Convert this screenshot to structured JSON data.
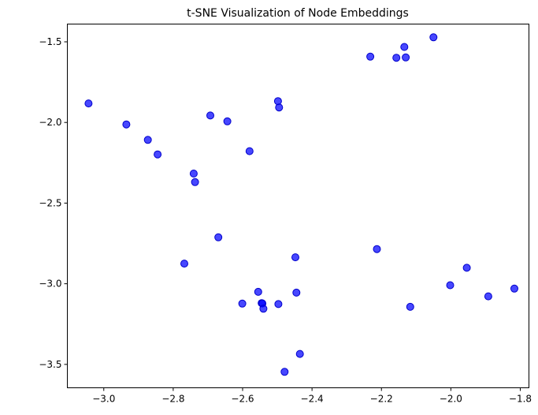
{
  "chart_data": {
    "type": "scatter",
    "title": "t-SNE Visualization of Node Embeddings",
    "xlabel": "",
    "ylabel": "",
    "xlim": [
      -3.105,
      -1.775
    ],
    "ylim": [
      -3.645,
      -1.39
    ],
    "xticks": [
      -3.0,
      -2.8,
      -2.6,
      -2.4,
      -2.2,
      -2.0,
      -1.8
    ],
    "xtick_labels": [
      "−3.0",
      "−2.8",
      "−2.6",
      "−2.4",
      "−2.2",
      "−2.0",
      "−1.8"
    ],
    "yticks": [
      -1.5,
      -2.0,
      -2.5,
      -3.0,
      -3.5
    ],
    "ytick_labels": [
      "−1.5",
      "−2.0",
      "−2.5",
      "−3.0",
      "−3.5"
    ],
    "grid": false,
    "colors": {
      "point": "#0000ff"
    },
    "points": [
      {
        "x": -3.044,
        "y": -1.882
      },
      {
        "x": -2.935,
        "y": -2.012
      },
      {
        "x": -2.873,
        "y": -2.108
      },
      {
        "x": -2.845,
        "y": -2.198
      },
      {
        "x": -2.741,
        "y": -2.317
      },
      {
        "x": -2.737,
        "y": -2.37
      },
      {
        "x": -2.693,
        "y": -1.957
      },
      {
        "x": -2.644,
        "y": -1.993
      },
      {
        "x": -2.58,
        "y": -2.178
      },
      {
        "x": -2.498,
        "y": -1.868
      },
      {
        "x": -2.495,
        "y": -1.907
      },
      {
        "x": -2.232,
        "y": -1.592
      },
      {
        "x": -2.157,
        "y": -1.599
      },
      {
        "x": -2.134,
        "y": -1.532
      },
      {
        "x": -2.13,
        "y": -1.597
      },
      {
        "x": -2.05,
        "y": -1.472
      },
      {
        "x": -2.67,
        "y": -2.712
      },
      {
        "x": -2.768,
        "y": -2.875
      },
      {
        "x": -2.213,
        "y": -2.785
      },
      {
        "x": -2.448,
        "y": -2.836
      },
      {
        "x": -1.954,
        "y": -2.901
      },
      {
        "x": -2.002,
        "y": -3.009
      },
      {
        "x": -1.817,
        "y": -3.03
      },
      {
        "x": -1.892,
        "y": -3.078
      },
      {
        "x": -2.117,
        "y": -3.143
      },
      {
        "x": -2.555,
        "y": -3.05
      },
      {
        "x": -2.445,
        "y": -3.055
      },
      {
        "x": -2.601,
        "y": -3.123
      },
      {
        "x": -2.545,
        "y": -3.12
      },
      {
        "x": -2.543,
        "y": -3.122
      },
      {
        "x": -2.497,
        "y": -3.126
      },
      {
        "x": -2.54,
        "y": -3.155
      },
      {
        "x": -2.435,
        "y": -3.435
      },
      {
        "x": -2.479,
        "y": -3.546
      }
    ]
  }
}
